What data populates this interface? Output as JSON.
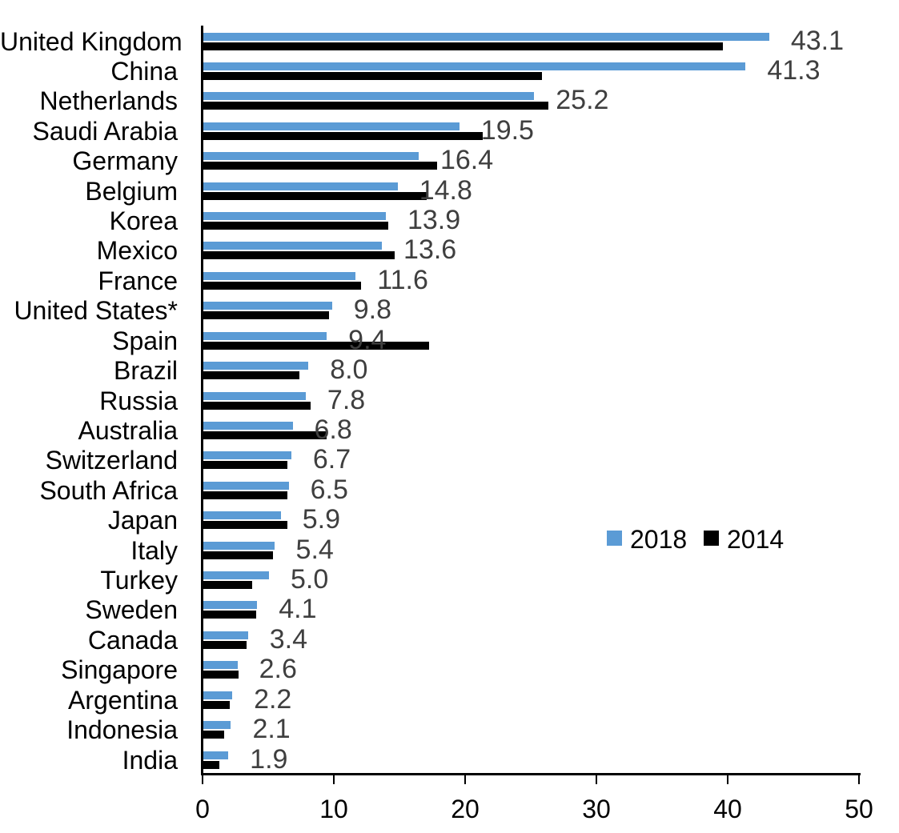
{
  "chart_data": {
    "type": "bar",
    "orientation": "horizontal",
    "title": "",
    "xlabel": "",
    "ylabel": "",
    "xlim": [
      0,
      50
    ],
    "x_ticks": [
      0,
      10,
      20,
      30,
      40,
      50
    ],
    "x_tick_labels": [
      "0",
      "10",
      "20",
      "30",
      "40",
      "50"
    ],
    "grid": false,
    "legend_position": "center-right",
    "categories": [
      "United Kingdom",
      "China",
      "Netherlands",
      "Saudi Arabia",
      "Germany",
      "Belgium",
      "Korea",
      "Mexico",
      "France",
      "United States*",
      "Spain",
      "Brazil",
      "Russia",
      "Australia",
      "Switzerland",
      "South Africa",
      "Japan",
      "Italy",
      "Turkey",
      "Sweden",
      "Canada",
      "Singapore",
      "Argentina",
      "Indonesia",
      "India"
    ],
    "series": [
      {
        "name": "2018",
        "color": "#5B9BD5",
        "values": [
          43.1,
          41.3,
          25.2,
          19.5,
          16.4,
          14.8,
          13.9,
          13.6,
          11.6,
          9.8,
          9.4,
          8.0,
          7.8,
          6.8,
          6.7,
          6.5,
          5.9,
          5.4,
          5.0,
          4.1,
          3.4,
          2.6,
          2.2,
          2.1,
          1.9
        ]
      },
      {
        "name": "2014",
        "color": "#000000",
        "values": [
          39.6,
          25.8,
          26.3,
          21.3,
          17.8,
          17.0,
          14.1,
          14.6,
          12.0,
          9.6,
          17.2,
          7.3,
          8.2,
          9.4,
          6.4,
          6.4,
          6.4,
          5.3,
          3.7,
          4.0,
          3.3,
          2.7,
          2.0,
          1.6,
          1.2
        ]
      }
    ],
    "value_labels": [
      "43.1",
      "41.3",
      "25.2",
      "19.5",
      "16.4",
      "14.8",
      "13.9",
      "13.6",
      "11.6",
      "9.8",
      "9.4",
      "8.0",
      "7.8",
      "6.8",
      "6.7",
      "6.5",
      "5.9",
      "5.4",
      "5.0",
      "4.1",
      "3.4",
      "2.6",
      "2.2",
      "2.1",
      "1.9"
    ],
    "value_labels_series": "2018"
  },
  "colors": {
    "bar_2018": "#5B9BD5",
    "bar_2014": "#000000",
    "value_label": "#3F3F3F",
    "axis": "#000000",
    "text": "#000000",
    "background": "#FFFFFF"
  }
}
